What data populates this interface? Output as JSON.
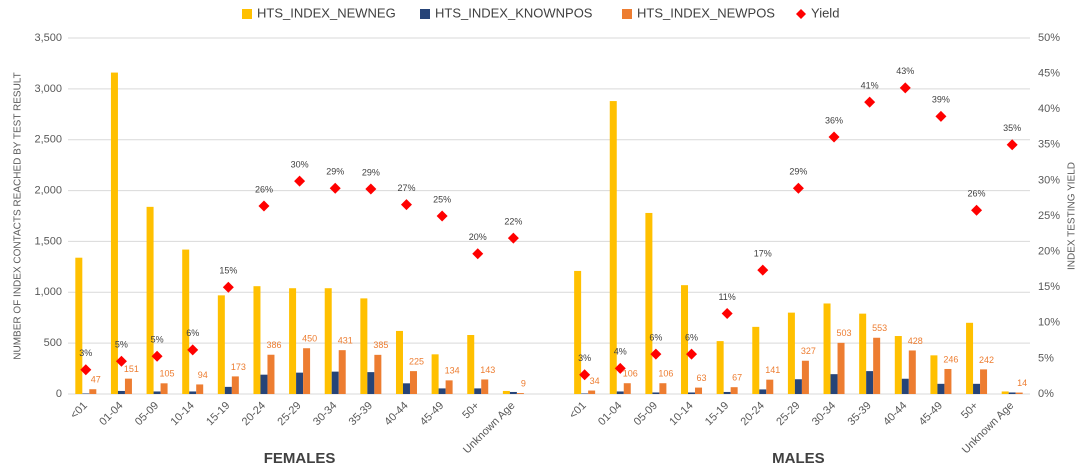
{
  "chart_data": {
    "type": "bar",
    "y_axis_label": "NUMBER OF INDEX CONTACTS REACHED BY TEST RESULT",
    "y2_axis_label": "INDEX TESTING YIELD",
    "group_labels": [
      "FEMALES",
      "MALES"
    ],
    "categories": [
      "<01",
      "01-04",
      "05-09",
      "10-14",
      "15-19",
      "20-24",
      "25-29",
      "30-34",
      "35-39",
      "40-44",
      "45-49",
      "50+",
      "Unknown Age",
      null,
      "<01",
      "01-04",
      "05-09",
      "10-14",
      "15-19",
      "20-24",
      "25-29",
      "30-34",
      "35-39",
      "40-44",
      "45-49",
      "50+",
      "Unknown Age"
    ],
    "ylim": [
      0,
      3500
    ],
    "yticks": [
      0,
      500,
      {
        "value": 1000,
        "label": "1,000"
      },
      {
        "value": 1500,
        "label": "1,500"
      },
      {
        "value": 2000,
        "label": "2,000"
      },
      {
        "value": 2500,
        "label": "2,500"
      },
      {
        "value": 3000,
        "label": "3,000"
      },
      {
        "value": 3500,
        "label": "3,500"
      }
    ],
    "y2lim": [
      0,
      50
    ],
    "y2ticks": [
      {
        "value": 0,
        "label": "0%"
      },
      {
        "value": 5,
        "label": "5%"
      },
      {
        "value": 10,
        "label": "10%"
      },
      {
        "value": 15,
        "label": "15%"
      },
      {
        "value": 20,
        "label": "20%"
      },
      {
        "value": 25,
        "label": "25%"
      },
      {
        "value": 30,
        "label": "30%"
      },
      {
        "value": 35,
        "label": "35%"
      },
      {
        "value": 40,
        "label": "40%"
      },
      {
        "value": 45,
        "label": "45%"
      },
      {
        "value": 50,
        "label": "50%"
      }
    ],
    "grid": true,
    "legend": "top",
    "series": [
      {
        "name": "HTS_INDEX_NEWNEG",
        "color": "#ffc000",
        "values": [
          1340,
          3160,
          1840,
          1420,
          970,
          1060,
          1040,
          1040,
          940,
          620,
          390,
          580,
          30,
          null,
          1210,
          2880,
          1780,
          1070,
          520,
          660,
          800,
          890,
          790,
          570,
          380,
          700,
          25
        ]
      },
      {
        "name": "HTS_INDEX_KNOWNPOS",
        "color": "#264478",
        "values": [
          5,
          30,
          25,
          25,
          70,
          190,
          210,
          220,
          215,
          105,
          55,
          55,
          20,
          null,
          5,
          25,
          15,
          15,
          20,
          45,
          145,
          195,
          225,
          150,
          100,
          100,
          15
        ]
      },
      {
        "name": "HTS_INDEX_NEWPOS",
        "color": "#ed7d31",
        "show_labels": true,
        "values": [
          47,
          151,
          105,
          94,
          173,
          386,
          450,
          431,
          385,
          225,
          134,
          143,
          9,
          null,
          34,
          106,
          106,
          63,
          67,
          141,
          327,
          503,
          553,
          428,
          246,
          242,
          14
        ]
      },
      {
        "name": "Yield",
        "color": "#ff0000",
        "type": "scatter",
        "marker": "diamond",
        "axis": "y2",
        "values": [
          3.4,
          4.6,
          5.3,
          6.2,
          15.0,
          26.4,
          29.9,
          28.9,
          28.8,
          26.6,
          25.0,
          19.7,
          21.9,
          null,
          2.7,
          3.6,
          5.6,
          5.6,
          11.3,
          17.4,
          28.9,
          36.1,
          41.0,
          43.0,
          39.0,
          25.8,
          35.0
        ],
        "value_labels": [
          "3%",
          "5%",
          "5%",
          "6%",
          "15%",
          "26%",
          "30%",
          "29%",
          "29%",
          "27%",
          "25%",
          "20%",
          "22%",
          null,
          "3%",
          "4%",
          "6%",
          "6%",
          "11%",
          "17%",
          "29%",
          "36%",
          "41%",
          "43%",
          "39%",
          "26%",
          "35%"
        ]
      }
    ]
  }
}
